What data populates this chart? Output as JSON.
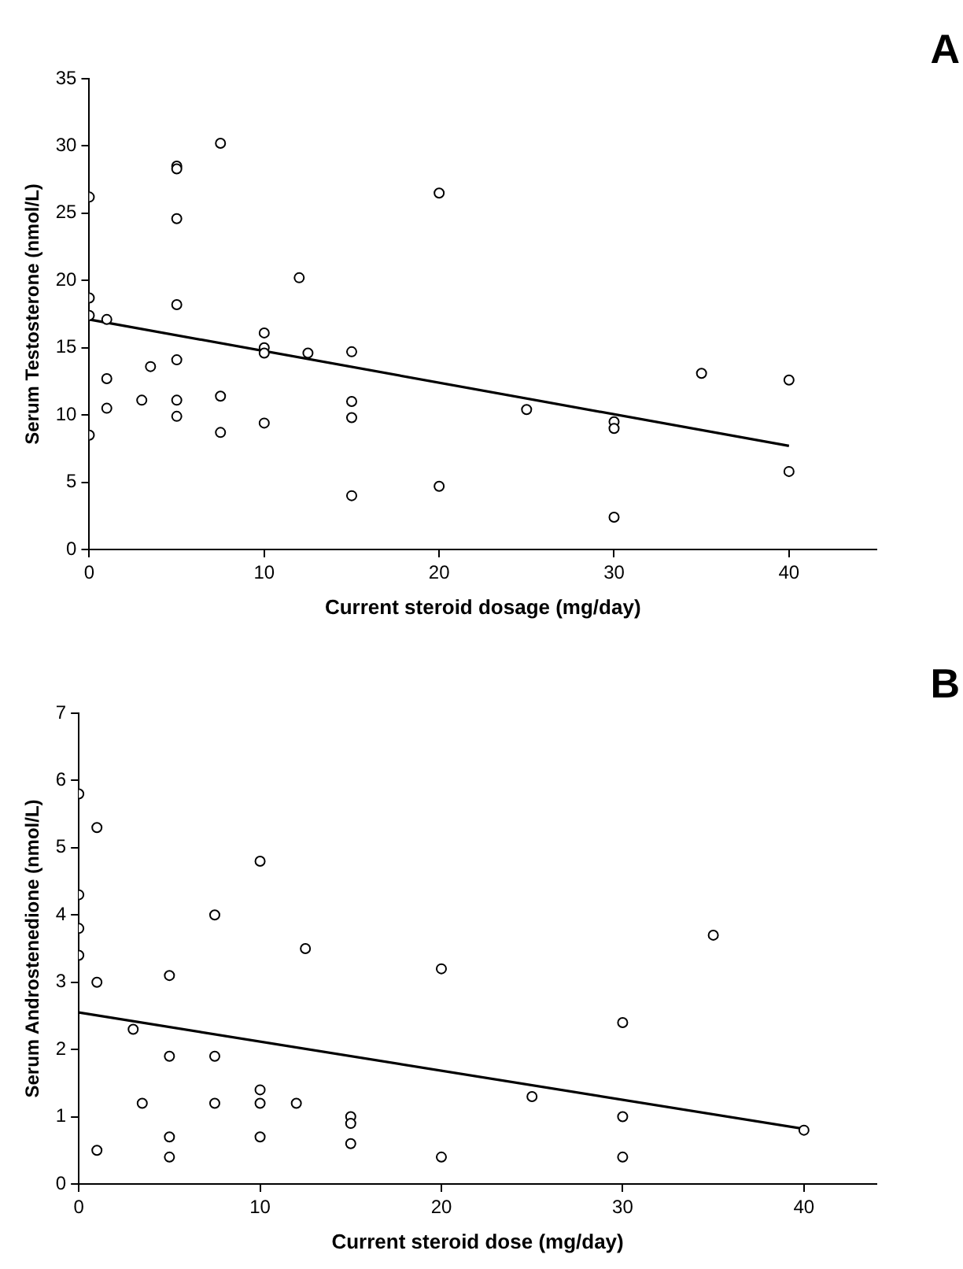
{
  "chart_data": [
    {
      "type": "scatter",
      "xlabel": "Current steroid dosage (mg/day)",
      "ylabel": "Serum Testosterone (nmol/L)",
      "annotations": [
        "A"
      ],
      "xlim": [
        0,
        45
      ],
      "xticks": [
        0,
        10,
        20,
        30,
        40
      ],
      "ylim": [
        0,
        35
      ],
      "yticks": [
        0,
        5,
        10,
        15,
        20,
        25,
        30,
        35
      ],
      "grid": false,
      "legend": false,
      "marker": "circle",
      "series": [
        {
          "color": "#000000",
          "x": [
            0,
            0,
            0,
            0,
            1,
            1,
            1,
            3,
            3.5,
            5,
            5,
            5,
            5,
            5,
            5,
            5,
            7.5,
            7.5,
            7.5,
            10,
            10,
            10,
            10,
            12,
            12.5,
            15,
            15,
            15,
            15,
            20,
            20,
            25,
            30,
            30,
            30,
            35,
            40,
            40
          ],
          "values": [
            26.2,
            18.7,
            17.4,
            8.5,
            17.1,
            12.7,
            10.5,
            11.1,
            13.6,
            28.5,
            28.3,
            24.6,
            18.2,
            14.1,
            11.1,
            9.9,
            30.2,
            11.4,
            8.7,
            16.1,
            15,
            14.6,
            9.4,
            20.2,
            14.6,
            14.7,
            11,
            9.8,
            4,
            26.5,
            4.7,
            10.4,
            9.5,
            9,
            2.4,
            13.1,
            12.6,
            5.8
          ]
        },
        {
          "type": "line",
          "color": "#000000",
          "marker": "none",
          "line_style": "solid",
          "x": [
            0,
            40
          ],
          "values": [
            17.1,
            7.7
          ]
        }
      ]
    },
    {
      "type": "scatter",
      "xlabel": "Current steroid dose (mg/day)",
      "ylabel": "Serum Androstenedione (nmol/L)",
      "annotations": [
        "B"
      ],
      "xlim": [
        0,
        44
      ],
      "xticks": [
        0,
        10,
        20,
        30,
        40
      ],
      "ylim": [
        0,
        7
      ],
      "yticks": [
        0,
        1,
        2,
        3,
        4,
        5,
        6,
        7
      ],
      "grid": false,
      "legend": false,
      "marker": "circle",
      "series": [
        {
          "color": "#000000",
          "x": [
            0,
            0,
            0,
            0,
            1,
            1,
            1,
            3,
            3.5,
            5,
            5,
            5,
            5,
            7.5,
            7.5,
            7.5,
            10,
            10,
            10,
            10,
            12,
            12.5,
            15,
            15,
            15,
            20,
            20,
            25,
            30,
            30,
            30,
            35,
            40
          ],
          "values": [
            5.8,
            4.3,
            3.8,
            3.4,
            5.3,
            3,
            0.5,
            2.3,
            1.2,
            3.1,
            1.9,
            0.7,
            0.4,
            4,
            1.9,
            1.2,
            4.8,
            1.4,
            1.2,
            0.7,
            1.2,
            3.5,
            1,
            0.9,
            0.6,
            3.2,
            0.4,
            1.3,
            2.4,
            1,
            0.4,
            3.7,
            0.8
          ]
        },
        {
          "type": "line",
          "color": "#000000",
          "marker": "none",
          "line_style": "solid",
          "x": [
            0,
            40
          ],
          "values": [
            2.55,
            0.82
          ]
        }
      ]
    }
  ]
}
